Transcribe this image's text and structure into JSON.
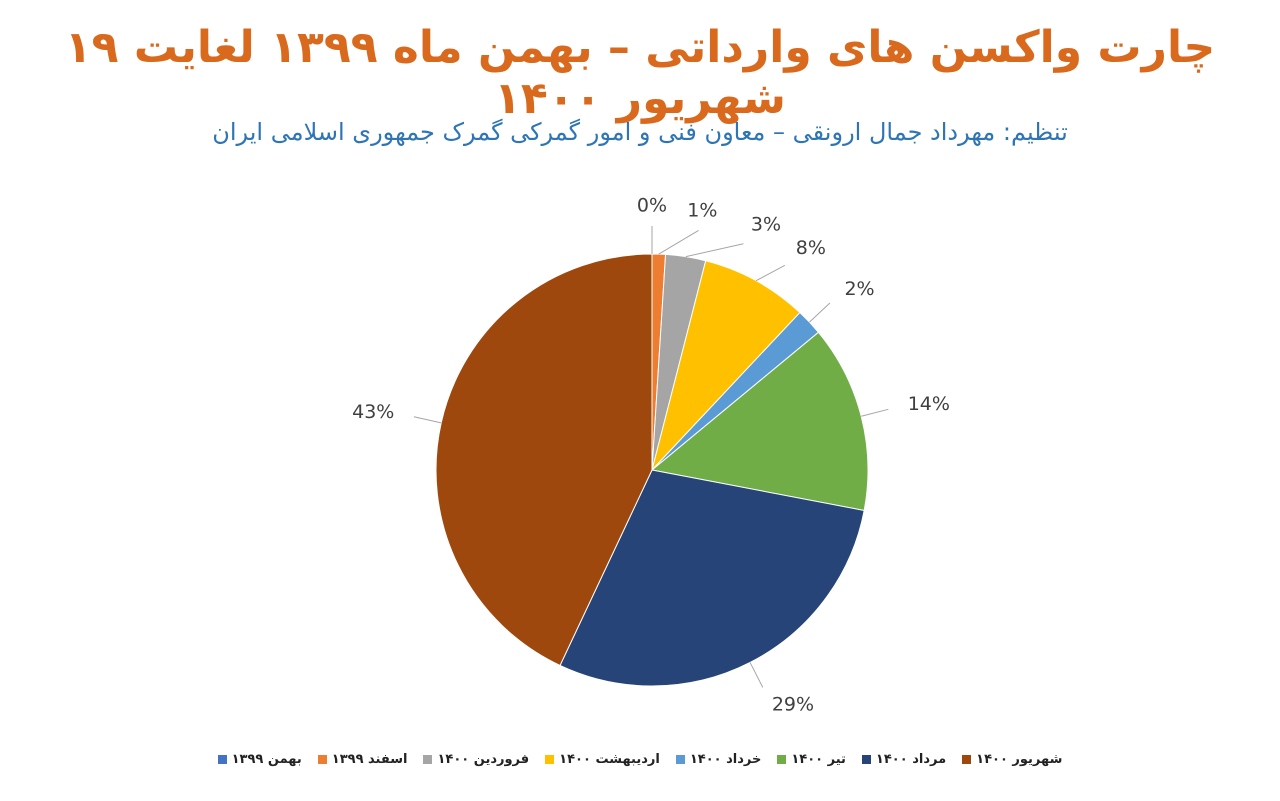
{
  "chart_data": {
    "type": "pie",
    "title": "چارت واکسن های وارداتی – بهمن ماه ۱۳۹۹ لغایت ۱۹ شهریور ۱۴۰۰",
    "subtitle": "تنظیم: مهرداد جمال ارونقی – معاون فنی و امور گمرکی گمرک جمهوری اسلامی ایران",
    "categories": [
      "بهمن ۱۳۹۹",
      "اسفند ۱۳۹۹",
      "فروردین ۱۴۰۰",
      "اردیبهشت ۱۴۰۰",
      "خرداد ۱۴۰۰",
      "تیر ۱۴۰۰",
      "مرداد ۱۴۰۰",
      "شهریور ۱۴۰۰"
    ],
    "values": [
      0,
      1,
      3,
      8,
      2,
      14,
      29,
      43
    ],
    "value_labels": [
      "0%",
      "1%",
      "3%",
      "8%",
      "2%",
      "14%",
      "29%",
      "43%"
    ],
    "colors": [
      "#4472c4",
      "#ed7d31",
      "#a5a5a5",
      "#ffc000",
      "#5b9bd5",
      "#70ad47",
      "#264478",
      "#9e480e"
    ],
    "legend": "bottom"
  }
}
